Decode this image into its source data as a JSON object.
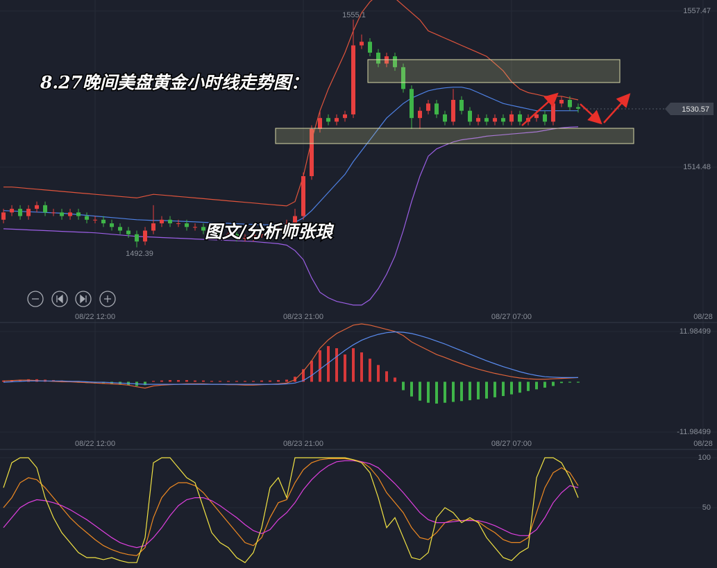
{
  "chart_data": [
    {
      "type": "candlestick",
      "title": "8.27晚间美盘黄金小时线走势图：",
      "subtitle": "图文/分析师张琅",
      "x": [
        0,
        1,
        2,
        3,
        4,
        5,
        6,
        7,
        8,
        9,
        10,
        11,
        12,
        13,
        14,
        15,
        16,
        17,
        18,
        19,
        20,
        21,
        22,
        23,
        24,
        25,
        26,
        27,
        28,
        29,
        30,
        31,
        32,
        33,
        34,
        35,
        36,
        37,
        38,
        39,
        40,
        41,
        42,
        43,
        44,
        45,
        46,
        47,
        48,
        49,
        50,
        51,
        52,
        53,
        54,
        55,
        56,
        57,
        58,
        59,
        60,
        61,
        62,
        63,
        64,
        65,
        66,
        67,
        68,
        69
      ],
      "open": [
        1500,
        1502,
        1503,
        1501,
        1503,
        1504,
        1502,
        1502,
        1501,
        1502,
        1501,
        1500,
        1500,
        1499,
        1498,
        1497,
        1496,
        1494,
        1497,
        1499,
        1500,
        1499,
        1499,
        1498,
        1498,
        1497,
        1497,
        1496,
        1496,
        1495,
        1495,
        1496,
        1496,
        1497,
        1497,
        1499,
        1501,
        1512,
        1525,
        1528,
        1527,
        1528,
        1529,
        1548,
        1549,
        1546,
        1543,
        1545,
        1542,
        1536,
        1528,
        1530,
        1532,
        1529,
        1527,
        1533,
        1530,
        1527,
        1528,
        1527,
        1528,
        1527,
        1529,
        1527,
        1528,
        1529,
        1527,
        1532,
        1533,
        1531
      ],
      "high": [
        1503,
        1504,
        1504,
        1504,
        1505,
        1505,
        1503,
        1503,
        1503,
        1503,
        1502,
        1501,
        1501,
        1500,
        1499,
        1498,
        1497,
        1498,
        1504,
        1501,
        1501,
        1500,
        1500,
        1499,
        1499,
        1498,
        1498,
        1497,
        1497,
        1496,
        1497,
        1497,
        1498,
        1498,
        1500,
        1503,
        1513,
        1526,
        1530,
        1529,
        1529,
        1530,
        1555.1,
        1551,
        1550,
        1547,
        1546,
        1546,
        1543,
        1537,
        1531,
        1533,
        1533,
        1530,
        1536,
        1534,
        1531,
        1529,
        1529,
        1529,
        1529,
        1530,
        1530,
        1529,
        1530,
        1530,
        1533,
        1534,
        1534,
        1532
      ],
      "low": [
        1499,
        1501,
        1500,
        1500,
        1502,
        1501,
        1501,
        1500,
        1500,
        1500,
        1499,
        1499,
        1498,
        1497,
        1496,
        1495,
        1492.39,
        1493,
        1496,
        1498,
        1498,
        1498,
        1497,
        1497,
        1496,
        1496,
        1495,
        1495,
        1494,
        1494,
        1494,
        1495,
        1495,
        1496,
        1496,
        1498,
        1500,
        1511,
        1524,
        1526,
        1526,
        1527,
        1528,
        1547,
        1545,
        1542,
        1542,
        1541,
        1535,
        1525,
        1525,
        1529,
        1528,
        1526,
        1526,
        1529,
        1526,
        1526,
        1526,
        1526,
        1526,
        1526,
        1526,
        1526,
        1527,
        1526,
        1526,
        1531,
        1530,
        1529.5
      ],
      "close": [
        1502,
        1503,
        1501,
        1503,
        1504,
        1502,
        1502,
        1501,
        1502,
        1501,
        1500,
        1500,
        1499,
        1498,
        1497,
        1496,
        1494,
        1497,
        1499,
        1500,
        1499,
        1499,
        1498,
        1498,
        1497,
        1497,
        1496,
        1496,
        1495,
        1495,
        1496,
        1496,
        1497,
        1497,
        1499,
        1501,
        1512,
        1525,
        1528,
        1527,
        1528,
        1529,
        1548,
        1549,
        1546,
        1543,
        1545,
        1542,
        1536,
        1528,
        1530,
        1532,
        1529,
        1527,
        1533,
        1530,
        1527,
        1528,
        1527,
        1528,
        1527,
        1529,
        1527,
        1528,
        1529,
        1527,
        1532,
        1533,
        1531,
        1530.57
      ],
      "up_color": "#e8403f",
      "down_color": "#3fb549",
      "series": [
        {
          "color": "#e0543c",
          "values": [
            1509,
            1509,
            1508.8,
            1508.6,
            1508.4,
            1508.2,
            1508,
            1507.8,
            1507.6,
            1507.4,
            1507.2,
            1507,
            1506.8,
            1506.6,
            1506.4,
            1506.2,
            1506,
            1506.5,
            1507,
            1506.8,
            1506.6,
            1506.4,
            1506.2,
            1506,
            1505.8,
            1505.6,
            1505.4,
            1505.2,
            1505,
            1504.8,
            1504.6,
            1504.4,
            1504.2,
            1504,
            1503.8,
            1505,
            1512,
            1522,
            1530,
            1536,
            1541,
            1546,
            1552,
            1557,
            1560,
            1562,
            1562,
            1561,
            1559,
            1557,
            1555,
            1552,
            1551,
            1550,
            1549,
            1548,
            1547,
            1546,
            1545,
            1543,
            1541,
            1538,
            1536,
            1535,
            1534.5,
            1534,
            1534,
            1534,
            1533.5,
            1533
          ]
        },
        {
          "color": "#4f82e6",
          "values": [
            1502.5,
            1502.4,
            1502.3,
            1502.2,
            1502.1,
            1502,
            1501.9,
            1501.8,
            1501.6,
            1501.4,
            1501.2,
            1501,
            1500.8,
            1500.6,
            1500.4,
            1500.2,
            1500,
            1499.9,
            1499.8,
            1499.8,
            1499.7,
            1499.6,
            1499.5,
            1499.4,
            1499.3,
            1499.2,
            1499.1,
            1499,
            1498.9,
            1498.8,
            1498.7,
            1498.6,
            1498.6,
            1498.7,
            1498.9,
            1499.3,
            1500.5,
            1502.5,
            1505,
            1507.5,
            1510,
            1512.5,
            1516,
            1519,
            1522,
            1525,
            1528,
            1530,
            1532,
            1533.5,
            1534.5,
            1535.5,
            1536,
            1536.3,
            1536.5,
            1536.5,
            1536,
            1535,
            1534,
            1533,
            1532,
            1531.5,
            1531,
            1530.5,
            1530,
            1530,
            1530,
            1530,
            1530,
            1530
          ]
        },
        {
          "color": "#9c5fe6",
          "values": [
            1497.5,
            1497.4,
            1497.3,
            1497.2,
            1497.1,
            1497,
            1496.9,
            1496.8,
            1496.7,
            1496.6,
            1496.5,
            1496.4,
            1496.2,
            1496,
            1495.8,
            1495.6,
            1495.4,
            1495.3,
            1495.2,
            1495.1,
            1495,
            1494.9,
            1494.8,
            1494.7,
            1494.6,
            1494.5,
            1494.4,
            1494.3,
            1494.2,
            1494.1,
            1494,
            1493.8,
            1493.6,
            1493.4,
            1493,
            1491.5,
            1489,
            1484,
            1480,
            1478.5,
            1477.5,
            1477,
            1476.5,
            1476.5,
            1478,
            1481,
            1485,
            1490,
            1497,
            1505,
            1512,
            1517.5,
            1519.5,
            1520.5,
            1521.4,
            1522,
            1522.3,
            1522.6,
            1523,
            1523.2,
            1523.4,
            1523.6,
            1523.8,
            1524,
            1524.2,
            1524.6,
            1525,
            1525.3,
            1525.5,
            1525.6
          ]
        }
      ],
      "xlim": [
        -0.42,
        85.67
      ],
      "xticks": [
        {
          "value": 11,
          "label": "08/22 12:00"
        },
        {
          "value": 36,
          "label": "08/23 21:00"
        },
        {
          "value": 61,
          "label": "08/27 07:00"
        },
        {
          "value": 84,
          "label": "08/28"
        }
      ],
      "ylim": [
        1471.7,
        1560.5
      ],
      "yticks": [
        1514.48,
        1557.47
      ]
    },
    {
      "type": "macd",
      "histogram": [
        0.3,
        0.4,
        0.5,
        0.6,
        0.6,
        0.5,
        0.4,
        0.3,
        0.2,
        -0.2,
        -0.3,
        -0.4,
        -0.5,
        -0.6,
        -0.7,
        -0.8,
        -1,
        -0.8,
        0.2,
        0.3,
        0.4,
        0.4,
        0.4,
        0.3,
        0.3,
        0.2,
        0.2,
        0.2,
        0.2,
        0.2,
        0.2,
        0.3,
        0.3,
        0.4,
        0.5,
        1.2,
        3,
        5,
        7.5,
        8.5,
        8,
        6.5,
        8,
        7,
        5.5,
        4,
        2.5,
        1,
        -2,
        -3.5,
        -4.5,
        -5,
        -5.2,
        -5,
        -4.8,
        -4.6,
        -4.4,
        -4.2,
        -4,
        -3.7,
        -3.4,
        -3,
        -2.6,
        -2.2,
        -1.8,
        -1.4,
        -1,
        -0.3,
        -0.2,
        -0.2
      ],
      "up_color": "#d8393a",
      "down_color": "#3fb549",
      "series": [
        {
          "color": "#e0643a",
          "values": [
            0.2,
            0.3,
            0.4,
            0.4,
            0.3,
            0.2,
            0.1,
            0,
            0,
            -0.1,
            -0.2,
            -0.3,
            -0.4,
            -0.5,
            -0.6,
            -0.8,
            -1.2,
            -1.5,
            -1,
            -0.8,
            -0.7,
            -0.6,
            -0.5,
            -0.5,
            -0.5,
            -0.6,
            -0.6,
            -0.7,
            -0.7,
            -0.8,
            -0.8,
            -0.7,
            -0.6,
            -0.5,
            -0.3,
            0.5,
            2.5,
            5,
            8,
            10,
            11.5,
            12.5,
            13.5,
            13.8,
            13.5,
            13,
            12.5,
            12,
            11,
            9.5,
            8.5,
            7.5,
            6.5,
            5.8,
            5,
            4.3,
            3.6,
            3,
            2.5,
            2,
            1.6,
            1.2,
            0.9,
            0.7,
            0.6,
            0.6,
            0.7,
            0.8,
            0.9,
            1
          ]
        },
        {
          "color": "#5a8cf0",
          "values": [
            -0.1,
            0,
            0.1,
            0.2,
            0.2,
            0.2,
            0.2,
            0.2,
            0.1,
            0.1,
            0,
            -0.1,
            -0.1,
            -0.2,
            -0.3,
            -0.4,
            -0.5,
            -0.6,
            -0.6,
            -0.6,
            -0.6,
            -0.6,
            -0.6,
            -0.6,
            -0.6,
            -0.6,
            -0.6,
            -0.6,
            -0.6,
            -0.6,
            -0.6,
            -0.6,
            -0.6,
            -0.6,
            -0.5,
            -0.3,
            0.3,
            1.5,
            3,
            4.5,
            6,
            7.5,
            8.8,
            9.9,
            10.7,
            11.3,
            11.7,
            11.9,
            11.8,
            11.5,
            11,
            10.4,
            9.7,
            9,
            8.2,
            7.4,
            6.6,
            5.8,
            5,
            4.3,
            3.6,
            3,
            2.4,
            1.9,
            1.5,
            1.2,
            1.1,
            1,
            1,
            1
          ]
        }
      ],
      "xticks": [
        {
          "value": 11,
          "label": "08/22 12:00"
        },
        {
          "value": 36,
          "label": "08/23 21:00"
        },
        {
          "value": 61,
          "label": "08/27 07:00"
        },
        {
          "value": 84,
          "label": "08/28"
        }
      ],
      "ylim": [
        -16.12,
        14.13
      ],
      "yticks": [
        -11.98499,
        11.98499
      ]
    },
    {
      "type": "line",
      "series": [
        {
          "color": "#f08a22",
          "values": [
            50,
            60,
            75,
            80,
            78,
            70,
            60,
            50,
            40,
            32,
            25,
            18,
            12,
            8,
            5,
            3,
            2,
            10,
            40,
            60,
            70,
            75,
            75,
            72,
            65,
            55,
            45,
            35,
            25,
            15,
            12,
            20,
            40,
            55,
            58,
            75,
            88,
            95,
            98,
            99,
            99,
            99,
            98,
            96,
            90,
            80,
            65,
            55,
            45,
            30,
            20,
            18,
            25,
            35,
            38,
            37,
            38,
            36,
            30,
            25,
            18,
            15,
            15,
            20,
            45,
            70,
            85,
            90,
            85,
            72
          ]
        },
        {
          "color": "#e040e0",
          "values": [
            30,
            40,
            50,
            55,
            58,
            57,
            55,
            52,
            48,
            43,
            38,
            32,
            26,
            20,
            15,
            12,
            10,
            12,
            20,
            30,
            42,
            52,
            58,
            60,
            60,
            57,
            52,
            46,
            40,
            33,
            27,
            24,
            28,
            38,
            45,
            55,
            68,
            78,
            86,
            92,
            96,
            97,
            97,
            96,
            94,
            90,
            82,
            74,
            65,
            55,
            45,
            38,
            35,
            35,
            36,
            37,
            37,
            37,
            35,
            32,
            28,
            24,
            22,
            22,
            28,
            40,
            55,
            65,
            72,
            70
          ]
        },
        {
          "color": "#f2e344",
          "values": [
            70,
            95,
            100,
            100,
            90,
            60,
            40,
            25,
            15,
            5,
            0,
            0,
            -2,
            0,
            -3,
            -5,
            -5,
            20,
            95,
            100,
            100,
            90,
            80,
            75,
            50,
            25,
            15,
            10,
            0,
            -5,
            5,
            30,
            70,
            80,
            60,
            100,
            100,
            100,
            100,
            100,
            100,
            100,
            98,
            95,
            85,
            60,
            30,
            40,
            20,
            0,
            -2,
            5,
            40,
            50,
            45,
            35,
            40,
            35,
            20,
            10,
            0,
            -3,
            5,
            10,
            80,
            100,
            100,
            95,
            80,
            60
          ]
        }
      ],
      "ylim": [
        -10.42,
        108.33
      ],
      "yticks": [
        50,
        100
      ]
    }
  ]
}
